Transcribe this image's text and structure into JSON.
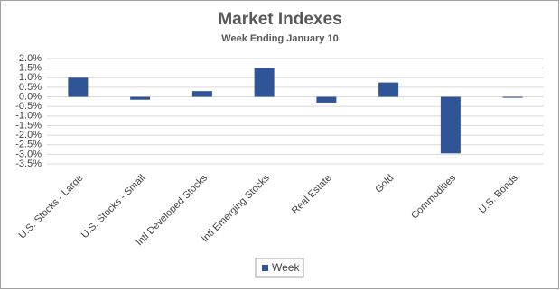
{
  "chart_data": {
    "type": "bar",
    "title": "Market Indexes",
    "subtitle": "Week Ending January 10",
    "categories": [
      "U.S. Stocks - Large",
      "U.S. Stocks - Small",
      "Intl Developed Stocks",
      "Intl Emerging Stocks",
      "Real Estate",
      "Gold",
      "Commodities",
      "U.S. Bonds"
    ],
    "series": [
      {
        "name": "Week",
        "color": "#2f5597",
        "values": [
          1.0,
          -0.15,
          0.3,
          1.5,
          -0.3,
          0.75,
          -2.95,
          -0.05
        ]
      }
    ],
    "ylim": [
      -3.5,
      2.0
    ],
    "yticks": [
      {
        "value": 2.0,
        "label": "2.0%"
      },
      {
        "value": 1.5,
        "label": "1.5%"
      },
      {
        "value": 1.0,
        "label": "1.0%"
      },
      {
        "value": 0.5,
        "label": "0.5%"
      },
      {
        "value": 0.0,
        "label": "0.0%"
      },
      {
        "value": -0.5,
        "label": "-0.5%"
      },
      {
        "value": -1.0,
        "label": "-1.0%"
      },
      {
        "value": -1.5,
        "label": "-1.5%"
      },
      {
        "value": -2.0,
        "label": "-2.0%"
      },
      {
        "value": -2.5,
        "label": "-2.5%"
      },
      {
        "value": -3.0,
        "label": "-3.0%"
      },
      {
        "value": -3.5,
        "label": "-3.5%"
      }
    ],
    "grid": true,
    "legend": "bottom"
  }
}
